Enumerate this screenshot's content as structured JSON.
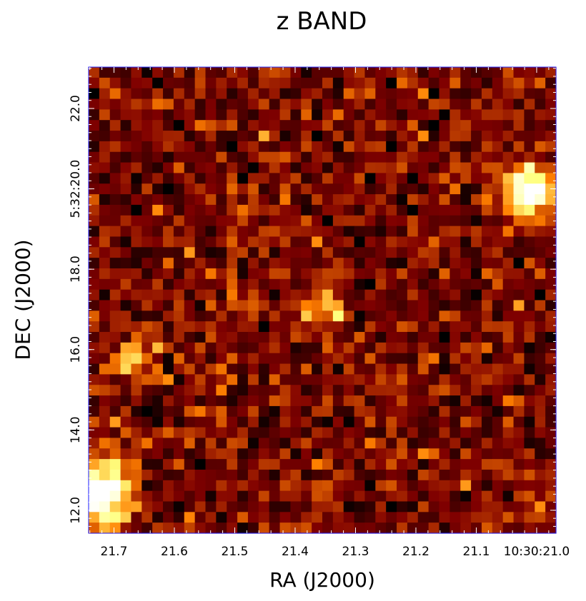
{
  "chart_data": {
    "type": "heatmap",
    "title": "z BAND",
    "xlabel": "RA (J2000)",
    "ylabel": "DEC (J2000)",
    "x_axis": {
      "direction": "decreasing",
      "ticks": [
        {
          "value": 21.7,
          "label": "21.7"
        },
        {
          "value": 21.6,
          "label": "21.6"
        },
        {
          "value": 21.5,
          "label": "21.5"
        },
        {
          "value": 21.4,
          "label": "21.4"
        },
        {
          "value": 21.3,
          "label": "21.3"
        },
        {
          "value": 21.2,
          "label": "21.2"
        },
        {
          "value": 21.1,
          "label": "21.1"
        },
        {
          "value": 21.0,
          "label": "10:30:21.0"
        }
      ],
      "range": [
        21.742,
        20.968
      ]
    },
    "y_axis": {
      "ticks": [
        {
          "value": 12.0,
          "label": "12.0"
        },
        {
          "value": 14.0,
          "label": "14.0"
        },
        {
          "value": 16.0,
          "label": "16.0"
        },
        {
          "value": 18.0,
          "label": "18.0"
        },
        {
          "value": 20.0,
          "label": "5:32:20.0"
        },
        {
          "value": 22.0,
          "label": "22.0"
        }
      ],
      "range": [
        11.43,
        23.03
      ]
    },
    "grid": false,
    "colormap": "afmhot",
    "image_size": [
      44,
      44
    ],
    "sources": [
      {
        "x": 21.01,
        "y": 19.9,
        "peak": 0.93,
        "sigma": 1.6
      },
      {
        "x": 21.72,
        "y": 12.5,
        "peak": 1.0,
        "sigma": 1.9
      },
      {
        "x": 21.67,
        "y": 15.8,
        "peak": 0.42,
        "sigma": 1.3
      },
      {
        "x": 21.35,
        "y": 17.1,
        "peak": 0.33,
        "sigma": 1.4
      }
    ],
    "background_level": 0.24,
    "noise_level": 0.11
  }
}
